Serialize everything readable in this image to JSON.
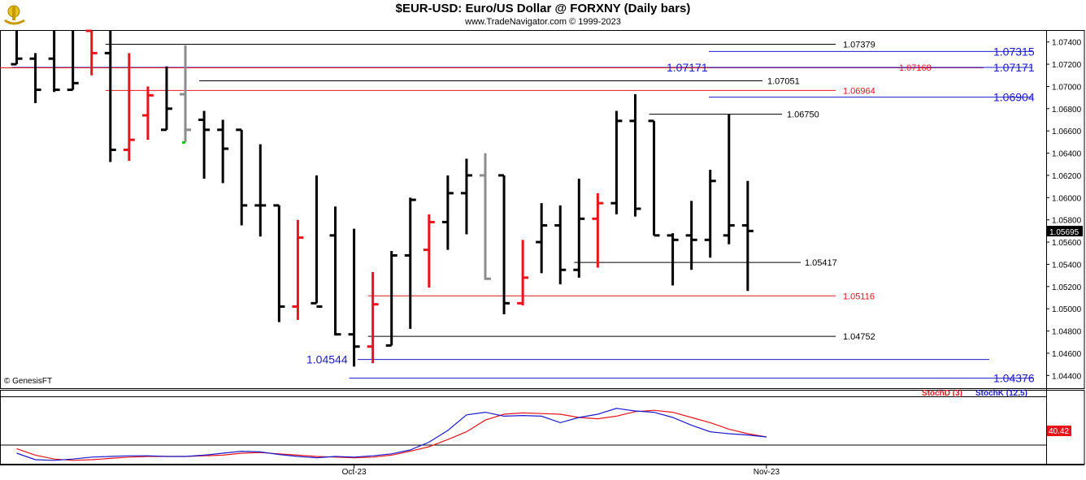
{
  "header": {
    "title": "$EUR-USD:  Euro/US Dollar @ FORXNY  (Daily bars)",
    "subtitle": "www.TradeNavigator.com © 1999-2023",
    "credit": "© GenesisFT"
  },
  "colors": {
    "up_black": "#000000",
    "down_red": "#e8141a",
    "neutral_gray": "#8c8c8c",
    "level_blue": "#1a1ad0",
    "level_red": "#e8141a",
    "level_black": "#000000",
    "stochD": "#e8141a",
    "stochK": "#1a1ad0"
  },
  "chart_data": [
    {
      "type": "ohlc",
      "y_axis_ticks": [
        "1.07400",
        "1.07200",
        "1.07000",
        "1.06800",
        "1.06600",
        "1.06400",
        "1.06200",
        "1.06000",
        "1.05800",
        "1.05600",
        "1.05400",
        "1.05200",
        "1.05000",
        "1.04800",
        "1.04600",
        "1.04400"
      ],
      "ylim": [
        1.043,
        1.075
      ],
      "x_tick_labels": [
        {
          "label": "Oct-23",
          "bar": 18
        },
        {
          "label": "Nov-23",
          "bar": 40
        }
      ],
      "last_price": "1.05695",
      "bars": [
        {
          "o": 1.072,
          "h": 1.075,
          "l": 1.072,
          "c": 1.0725,
          "col": "k"
        },
        {
          "o": 1.0725,
          "h": 1.073,
          "l": 1.0685,
          "c": 1.0697,
          "col": "k"
        },
        {
          "o": 1.0725,
          "h": 1.075,
          "l": 1.0695,
          "c": 1.0697,
          "col": "k"
        },
        {
          "o": 1.0697,
          "h": 1.075,
          "l": 1.0697,
          "c": 1.0703,
          "col": "k"
        },
        {
          "o": 1.075,
          "h": 1.075,
          "l": 1.071,
          "c": 1.073,
          "col": "r"
        },
        {
          "o": 1.073,
          "h": 1.075,
          "l": 1.0632,
          "c": 1.0643,
          "col": "k"
        },
        {
          "o": 1.0643,
          "h": 1.073,
          "l": 1.0633,
          "c": 1.0652,
          "col": "r"
        },
        {
          "o": 1.0674,
          "h": 1.07,
          "l": 1.0652,
          "c": 1.0692,
          "col": "r"
        },
        {
          "o": 1.0661,
          "h": 1.0718,
          "l": 1.0661,
          "c": 1.068,
          "col": "k"
        },
        {
          "o": 1.0693,
          "h": 1.0737,
          "l": 1.065,
          "c": 1.0661,
          "col": "g"
        },
        {
          "o": 1.067,
          "h": 1.0678,
          "l": 1.0617,
          "c": 1.0661,
          "col": "k"
        },
        {
          "o": 1.0661,
          "h": 1.067,
          "l": 1.0613,
          "c": 1.0644,
          "col": "k"
        },
        {
          "o": 1.0661,
          "h": 1.0661,
          "l": 1.0575,
          "c": 1.0593,
          "col": "k"
        },
        {
          "o": 1.0593,
          "h": 1.0648,
          "l": 1.0565,
          "c": 1.0593,
          "col": "k"
        },
        {
          "o": 1.0593,
          "h": 1.0593,
          "l": 1.0488,
          "c": 1.0502,
          "col": "k"
        },
        {
          "o": 1.0502,
          "h": 1.058,
          "l": 1.049,
          "c": 1.0564,
          "col": "r"
        },
        {
          "o": 1.0505,
          "h": 1.062,
          "l": 1.0505,
          "c": 1.0502,
          "col": "k"
        },
        {
          "o": 1.0566,
          "h": 1.0592,
          "l": 1.0476,
          "c": 1.0477,
          "col": "k"
        },
        {
          "o": 1.0477,
          "h": 1.0572,
          "l": 1.0448,
          "c": 1.0466,
          "col": "k"
        },
        {
          "o": 1.0466,
          "h": 1.0533,
          "l": 1.0451,
          "c": 1.0504,
          "col": "r"
        },
        {
          "o": 1.0467,
          "h": 1.0552,
          "l": 1.0467,
          "c": 1.0548,
          "col": "k"
        },
        {
          "o": 1.0548,
          "h": 1.06,
          "l": 1.0482,
          "c": 1.0598,
          "col": "k"
        },
        {
          "o": 1.0553,
          "h": 1.0585,
          "l": 1.0519,
          "c": 1.0578,
          "col": "r"
        },
        {
          "o": 1.0578,
          "h": 1.062,
          "l": 1.0553,
          "c": 1.0604,
          "col": "k"
        },
        {
          "o": 1.0604,
          "h": 1.0635,
          "l": 1.0567,
          "c": 1.062,
          "col": "k"
        },
        {
          "o": 1.062,
          "h": 1.064,
          "l": 1.0526,
          "c": 1.0527,
          "col": "g"
        },
        {
          "o": 1.062,
          "h": 1.062,
          "l": 1.0495,
          "c": 1.0505,
          "col": "k"
        },
        {
          "o": 1.0505,
          "h": 1.0562,
          "l": 1.0503,
          "c": 1.0528,
          "col": "r"
        },
        {
          "o": 1.056,
          "h": 1.0595,
          "l": 1.0532,
          "c": 1.0575,
          "col": "k"
        },
        {
          "o": 1.0575,
          "h": 1.0593,
          "l": 1.0522,
          "c": 1.0535,
          "col": "k"
        },
        {
          "o": 1.0535,
          "h": 1.0617,
          "l": 1.0528,
          "c": 1.0581,
          "col": "k"
        },
        {
          "o": 1.0581,
          "h": 1.0604,
          "l": 1.0537,
          "c": 1.0595,
          "col": "r"
        },
        {
          "o": 1.0595,
          "h": 1.0678,
          "l": 1.0585,
          "c": 1.0669,
          "col": "k"
        },
        {
          "o": 1.0669,
          "h": 1.0693,
          "l": 1.0583,
          "c": 1.059,
          "col": "k"
        },
        {
          "o": 1.0669,
          "h": 1.0669,
          "l": 1.0566,
          "c": 1.0566,
          "col": "k"
        },
        {
          "o": 1.0566,
          "h": 1.0568,
          "l": 1.0521,
          "c": 1.0562,
          "col": "k"
        },
        {
          "o": 1.0566,
          "h": 1.0597,
          "l": 1.0535,
          "c": 1.0562,
          "col": "k"
        },
        {
          "o": 1.0562,
          "h": 1.0625,
          "l": 1.0546,
          "c": 1.0615,
          "col": "k"
        },
        {
          "o": 1.0566,
          "h": 1.0675,
          "l": 1.0558,
          "c": 1.0575,
          "col": "k"
        },
        {
          "o": 1.0575,
          "h": 1.0615,
          "l": 1.0516,
          "c": 1.057,
          "col": "k"
        }
      ],
      "levels": [
        {
          "value": 1.07379,
          "label": "1.07379",
          "color": "k",
          "from_bar": 5,
          "label_pos": "mid"
        },
        {
          "value": 1.07315,
          "label": "1.07315",
          "color": "b",
          "from_bar": 37,
          "label_pos": "axis"
        },
        {
          "value": 1.07171,
          "label": "1.07171",
          "color": "b",
          "from_bar": 0,
          "label_pos": "axis"
        },
        {
          "value": 1.07171,
          "label": "1.07171",
          "color": "b",
          "from_bar": 0,
          "label_pos": "inline"
        },
        {
          "value": 1.07168,
          "label": "1.07168",
          "color": "r",
          "from_bar": 0,
          "label_pos": "mid2"
        },
        {
          "value": 1.07051,
          "label": "1.07051",
          "color": "k",
          "from_bar": 10,
          "label_pos": "short"
        },
        {
          "value": 1.06964,
          "label": "1.06964",
          "color": "r",
          "from_bar": 5,
          "label_pos": "mid"
        },
        {
          "value": 1.06904,
          "label": "1.06904",
          "color": "b",
          "from_bar": 37,
          "label_pos": "axis"
        },
        {
          "value": 1.0675,
          "label": "1.06750",
          "color": "k",
          "from_bar": 34,
          "label_pos": "short2"
        },
        {
          "value": 1.05417,
          "label": "1.05417",
          "color": "k",
          "from_bar": 30,
          "label_pos": "short3"
        },
        {
          "value": 1.05116,
          "label": "1.05116",
          "color": "r",
          "from_bar": 19,
          "label_pos": "mid"
        },
        {
          "value": 1.04752,
          "label": "1.04752",
          "color": "k",
          "from_bar": 19,
          "label_pos": "mid"
        },
        {
          "value": 1.04544,
          "label": "1.04544",
          "color": "b",
          "from_bar": 19,
          "label_pos": "left"
        },
        {
          "value": 1.04376,
          "label": "1.04376",
          "color": "b",
          "from_bar": 18,
          "label_pos": "axis"
        }
      ]
    },
    {
      "type": "line",
      "indicator": "stochastic",
      "legend": [
        {
          "name": "StochD (3)",
          "color": "r"
        },
        {
          "name": "StochK (12,5)",
          "color": "b"
        }
      ],
      "y_tick": "50",
      "last_value": "40.42",
      "ylim": [
        0,
        100
      ],
      "series": [
        {
          "name": "StochD (3)",
          "values": [
            22,
            12,
            6,
            4,
            5,
            7,
            9,
            10,
            10,
            10,
            11,
            12,
            15,
            16,
            14,
            12,
            10,
            9,
            8,
            9,
            12,
            18,
            25,
            36,
            48,
            66,
            75,
            77,
            76,
            75,
            70,
            68,
            72,
            79,
            81,
            78,
            70,
            62,
            52,
            45,
            40
          ]
        },
        {
          "name": "StochK (12,5)",
          "values": [
            15,
            5,
            4,
            6,
            9,
            10,
            11,
            11,
            10,
            10,
            12,
            15,
            18,
            17,
            13,
            10,
            8,
            10,
            9,
            11,
            14,
            20,
            32,
            50,
            74,
            78,
            72,
            73,
            72,
            62,
            70,
            75,
            84,
            80,
            78,
            70,
            58,
            48,
            45,
            43,
            40
          ]
        }
      ]
    }
  ]
}
